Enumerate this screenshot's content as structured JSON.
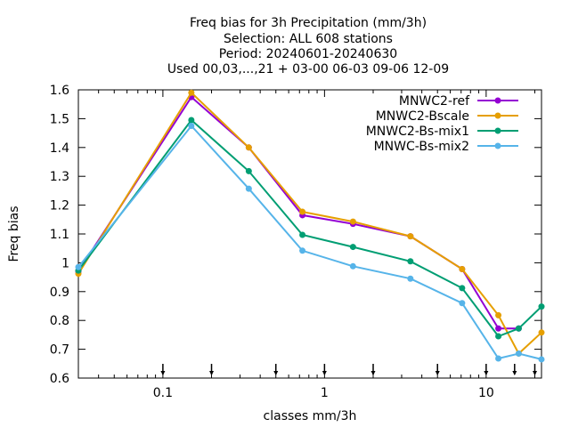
{
  "chart_data": {
    "type": "line",
    "title_lines": [
      "Freq bias  for 3h Precipitation (mm/3h)",
      "Selection: ALL    608 stations",
      "Period: 20240601-20240630",
      "Used 00,03,...,21 + 03-00 06-03 09-06 12-09"
    ],
    "xlabel": "classes mm/3h",
    "ylabel": "Freq bias",
    "x_scale": "log",
    "xlim": [
      0.03,
      22
    ],
    "ylim": [
      0.6,
      1.6
    ],
    "x_ticks": [
      0.1,
      1,
      10
    ],
    "x_tick_labels": [
      "0.1",
      "1",
      "10"
    ],
    "y_ticks": [
      0.6,
      0.7,
      0.8,
      0.9,
      1.0,
      1.1,
      1.2,
      1.3,
      1.4,
      1.5,
      1.6
    ],
    "y_tick_labels": [
      "0.6",
      "0.7",
      "0.8",
      "0.9",
      "1",
      "1.1",
      "1.2",
      "1.3",
      "1.4",
      "1.5",
      "1.6"
    ],
    "grid": false,
    "legend_position": "top-right",
    "class_markers": [
      0.1,
      0.2,
      0.5,
      1,
      2,
      5,
      10,
      15,
      20
    ],
    "x": [
      0.03,
      0.15,
      0.34,
      0.73,
      1.5,
      3.4,
      7.1,
      11.9,
      15.9,
      22
    ],
    "series": [
      {
        "name": "MNWC2-ref",
        "color": "#9400d3",
        "values": [
          0.97,
          1.575,
          1.4,
          1.165,
          1.135,
          1.092,
          0.978,
          0.772,
          0.772,
          null
        ]
      },
      {
        "name": "MNWC2-Bscale",
        "color": "#e69f00",
        "values": [
          0.962,
          1.59,
          1.4,
          1.177,
          1.143,
          1.092,
          0.978,
          0.818,
          0.685,
          0.758
        ]
      },
      {
        "name": "MNWC2-Bs-mix1",
        "color": "#009e73",
        "values": [
          0.973,
          1.495,
          1.318,
          1.097,
          1.055,
          1.005,
          0.912,
          0.745,
          0.772,
          0.848
        ]
      },
      {
        "name": "MNWC-Bs-mix2",
        "color": "#56b4e9",
        "values": [
          0.985,
          1.475,
          1.257,
          1.042,
          0.988,
          0.945,
          0.86,
          0.668,
          0.685,
          0.665
        ]
      }
    ]
  }
}
